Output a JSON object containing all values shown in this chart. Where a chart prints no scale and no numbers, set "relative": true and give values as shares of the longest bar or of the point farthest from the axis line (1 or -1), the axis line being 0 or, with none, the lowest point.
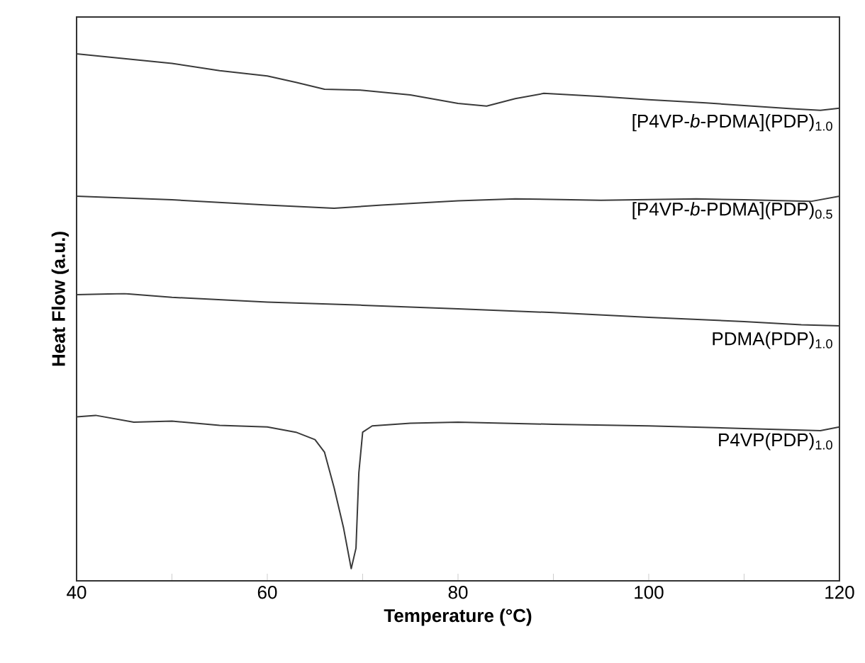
{
  "chart_data": {
    "type": "line",
    "relative": true,
    "xlabel": "Temperature (°C)",
    "ylabel": "Heat Flow (a.u.)",
    "xlim": [
      40,
      120
    ],
    "xticks": [
      40,
      {
        "value": 50,
        "label": null
      },
      60,
      {
        "value": 70,
        "label": null
      },
      80,
      {
        "value": 90,
        "label": null
      },
      100,
      {
        "value": 110,
        "label": null
      },
      120
    ],
    "tick_labels": "x",
    "series": [
      {
        "name": "[P4VP-*b*-PDMA](PDP)$_{1.0}$",
        "color": "#3a3a3a",
        "x": [
          40,
          45,
          50,
          55,
          60,
          63,
          66,
          70,
          75,
          80,
          83,
          86,
          89,
          95,
          100,
          106,
          110,
          115,
          118,
          120
        ],
        "values": [
          1.0,
          0.991,
          0.982,
          0.968,
          0.958,
          0.946,
          0.933,
          0.931,
          0.922,
          0.906,
          0.901,
          0.915,
          0.925,
          0.919,
          0.913,
          0.907,
          0.902,
          0.896,
          0.893,
          0.897
        ]
      },
      {
        "name": "[P4VP-*b*-PDMA](PDP)$_{0.5}$",
        "color": "#3a3a3a",
        "x": [
          40,
          50,
          60,
          67,
          72,
          80,
          86,
          95,
          105,
          110,
          117,
          120
        ],
        "values": [
          0.73,
          0.723,
          0.713,
          0.707,
          0.713,
          0.721,
          0.725,
          0.722,
          0.725,
          0.723,
          0.72,
          0.73
        ]
      },
      {
        "name": "PDMA(PDP)$_{1.0}$",
        "color": "#3a3a3a",
        "x": [
          40,
          45,
          50,
          60,
          70,
          80,
          90,
          100,
          110,
          116,
          120
        ],
        "values": [
          0.543,
          0.545,
          0.538,
          0.529,
          0.523,
          0.516,
          0.509,
          0.5,
          0.492,
          0.486,
          0.484
        ]
      },
      {
        "name": "P4VP(PDP)$_{1.0}$",
        "color": "#3a3a3a",
        "x": [
          40,
          42,
          46,
          50,
          55,
          60,
          63,
          65,
          66,
          67,
          68,
          68.8,
          69.3,
          69.6,
          70,
          71,
          75,
          80,
          90,
          100,
          110,
          118,
          120
        ],
        "values": [
          0.311,
          0.314,
          0.301,
          0.303,
          0.295,
          0.292,
          0.282,
          0.268,
          0.244,
          0.177,
          0.1,
          0.023,
          0.062,
          0.205,
          0.282,
          0.294,
          0.299,
          0.301,
          0.297,
          0.294,
          0.289,
          0.285,
          0.292
        ]
      }
    ],
    "line_style": "solid"
  }
}
